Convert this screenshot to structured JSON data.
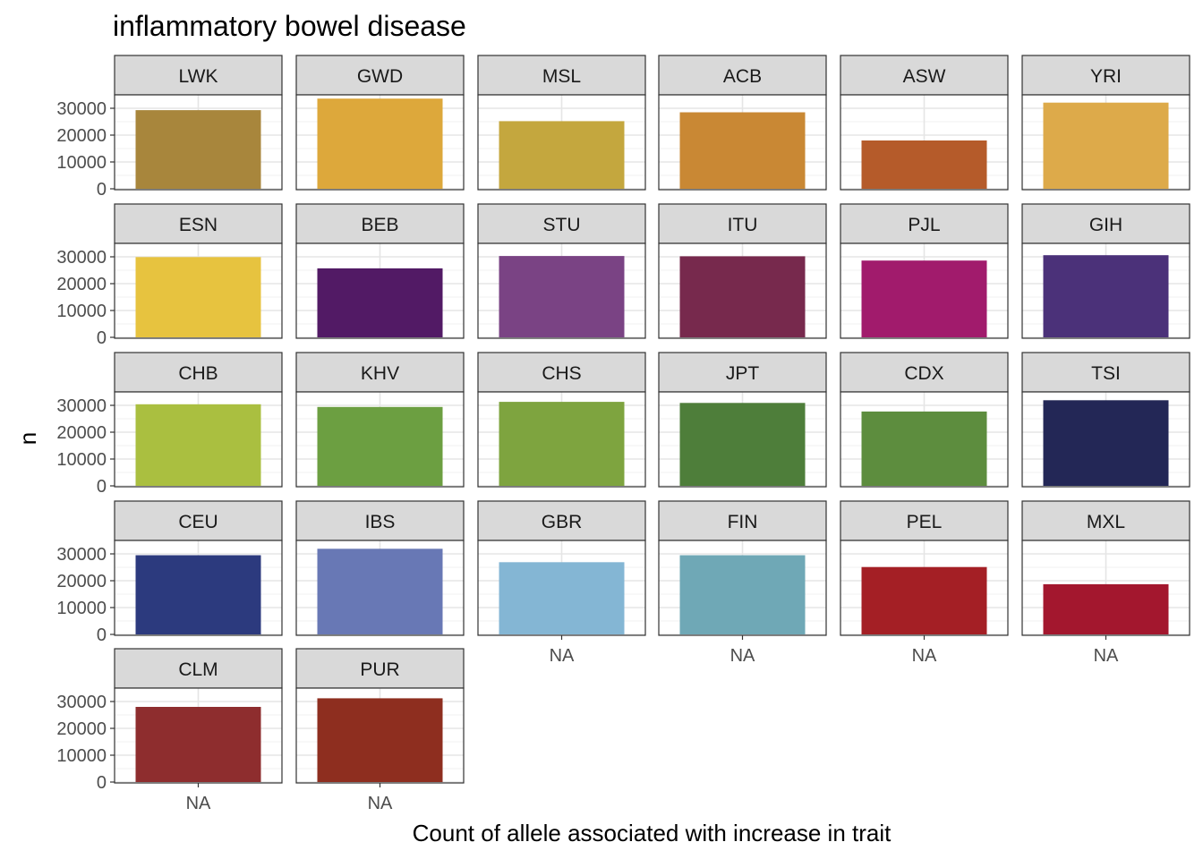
{
  "chart_data": {
    "type": "bar",
    "title": "inflammatory bowel disease",
    "xlabel": "Count of allele associated with increase in trait",
    "ylabel": "n",
    "x_category": "NA",
    "ylim": [
      0,
      35000
    ],
    "y_ticks": [
      0,
      10000,
      20000,
      30000
    ],
    "grid": true,
    "legend": "none",
    "panels": [
      {
        "name": "LWK",
        "value": 29300,
        "color": "#A8863C"
      },
      {
        "name": "GWD",
        "value": 33600,
        "color": "#DDA83B"
      },
      {
        "name": "MSL",
        "value": 25200,
        "color": "#C4A73E"
      },
      {
        "name": "ACB",
        "value": 28500,
        "color": "#C98834"
      },
      {
        "name": "ASW",
        "value": 18000,
        "color": "#B55B2A"
      },
      {
        "name": "YRI",
        "value": 32100,
        "color": "#DDAA4A"
      },
      {
        "name": "ESN",
        "value": 29900,
        "color": "#E7C33F"
      },
      {
        "name": "BEB",
        "value": 25700,
        "color": "#521A65"
      },
      {
        "name": "STU",
        "value": 30300,
        "color": "#7A4384"
      },
      {
        "name": "ITU",
        "value": 30200,
        "color": "#77294D"
      },
      {
        "name": "PJL",
        "value": 28600,
        "color": "#A11B6C"
      },
      {
        "name": "GIH",
        "value": 30600,
        "color": "#4B3179"
      },
      {
        "name": "CHB",
        "value": 30400,
        "color": "#AABF40"
      },
      {
        "name": "KHV",
        "value": 29400,
        "color": "#6C9F41"
      },
      {
        "name": "CHS",
        "value": 31300,
        "color": "#7EA43F"
      },
      {
        "name": "JPT",
        "value": 30900,
        "color": "#4E7E3A"
      },
      {
        "name": "CDX",
        "value": 27700,
        "color": "#5D8D3E"
      },
      {
        "name": "TSI",
        "value": 31900,
        "color": "#232756"
      },
      {
        "name": "CEU",
        "value": 29500,
        "color": "#2C3A7E"
      },
      {
        "name": "IBS",
        "value": 31900,
        "color": "#6878B5"
      },
      {
        "name": "GBR",
        "value": 26900,
        "color": "#84B6D4"
      },
      {
        "name": "FIN",
        "value": 29500,
        "color": "#6FA8B6"
      },
      {
        "name": "PEL",
        "value": 25100,
        "color": "#A41F25"
      },
      {
        "name": "MXL",
        "value": 18700,
        "color": "#A3172E"
      },
      {
        "name": "CLM",
        "value": 28000,
        "color": "#8E2D2E"
      },
      {
        "name": "PUR",
        "value": 31200,
        "color": "#8E2E1F"
      }
    ]
  }
}
